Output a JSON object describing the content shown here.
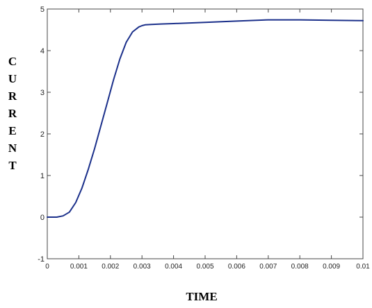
{
  "chart_data": {
    "type": "line",
    "title": "",
    "xlabel": "TIME",
    "ylabel": "CURRENT",
    "xlim": [
      0,
      0.01
    ],
    "ylim": [
      -1,
      5
    ],
    "x_ticks": [
      "0",
      "0.001",
      "0.002",
      "0.003",
      "0.004",
      "0.005",
      "0.006",
      "0.007",
      "0.008",
      "0.009",
      "0.01"
    ],
    "y_ticks": [
      "-1",
      "0",
      "1",
      "2",
      "3",
      "4",
      "5"
    ],
    "grid": false,
    "series": [
      {
        "color": "#1a2f8a",
        "x": [
          0,
          0.0003,
          0.0005,
          0.0007,
          0.0009,
          0.0011,
          0.0013,
          0.0015,
          0.0017,
          0.0019,
          0.0021,
          0.0023,
          0.0025,
          0.0027,
          0.0029,
          0.003,
          0.0031,
          0.0033,
          0.0036,
          0.004,
          0.005,
          0.006,
          0.007,
          0.008,
          0.009,
          0.01
        ],
        "y": [
          0,
          0,
          0.03,
          0.12,
          0.35,
          0.7,
          1.15,
          1.65,
          2.2,
          2.75,
          3.3,
          3.8,
          4.2,
          4.45,
          4.57,
          4.6,
          4.62,
          4.63,
          4.64,
          4.65,
          4.68,
          4.71,
          4.74,
          4.74,
          4.73,
          4.72
        ]
      }
    ]
  }
}
